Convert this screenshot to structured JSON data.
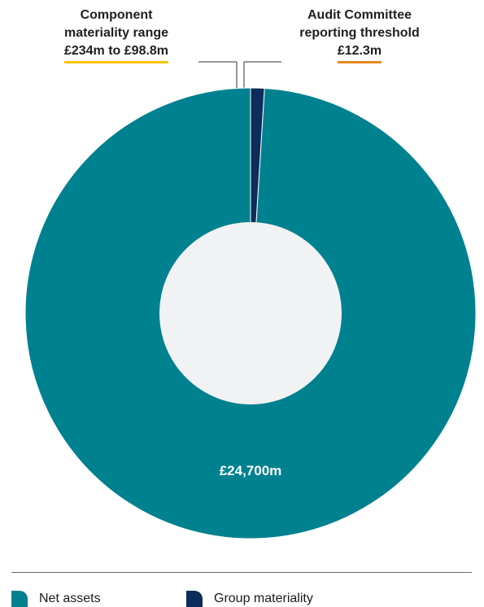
{
  "callouts": {
    "component": {
      "line1": "Component",
      "line2": "materiality range",
      "value": "£234m to £98.8m"
    },
    "audit": {
      "line1": "Audit Committee",
      "line2": "reporting threshold",
      "value": "£12.3m"
    }
  },
  "center_label": "£24,700m",
  "legend": {
    "net_assets": "Net assets",
    "group_materiality": "Group materiality"
  },
  "colors": {
    "net_assets": "#00818f",
    "group_materiality": "#0c2d5c",
    "center": "#f1f2f4",
    "component_underline": "#f5c400",
    "audit_underline": "#e58a1f"
  },
  "chart_data": {
    "type": "pie",
    "labels": [
      "Net assets",
      "Group materiality"
    ],
    "values": [
      24700,
      246
    ],
    "value_labels": [
      "£24,700m",
      ""
    ],
    "annotations": [
      {
        "text": "Component materiality range £234m to £98.8m"
      },
      {
        "text": "Audit Committee reporting threshold £12.3m"
      }
    ]
  }
}
